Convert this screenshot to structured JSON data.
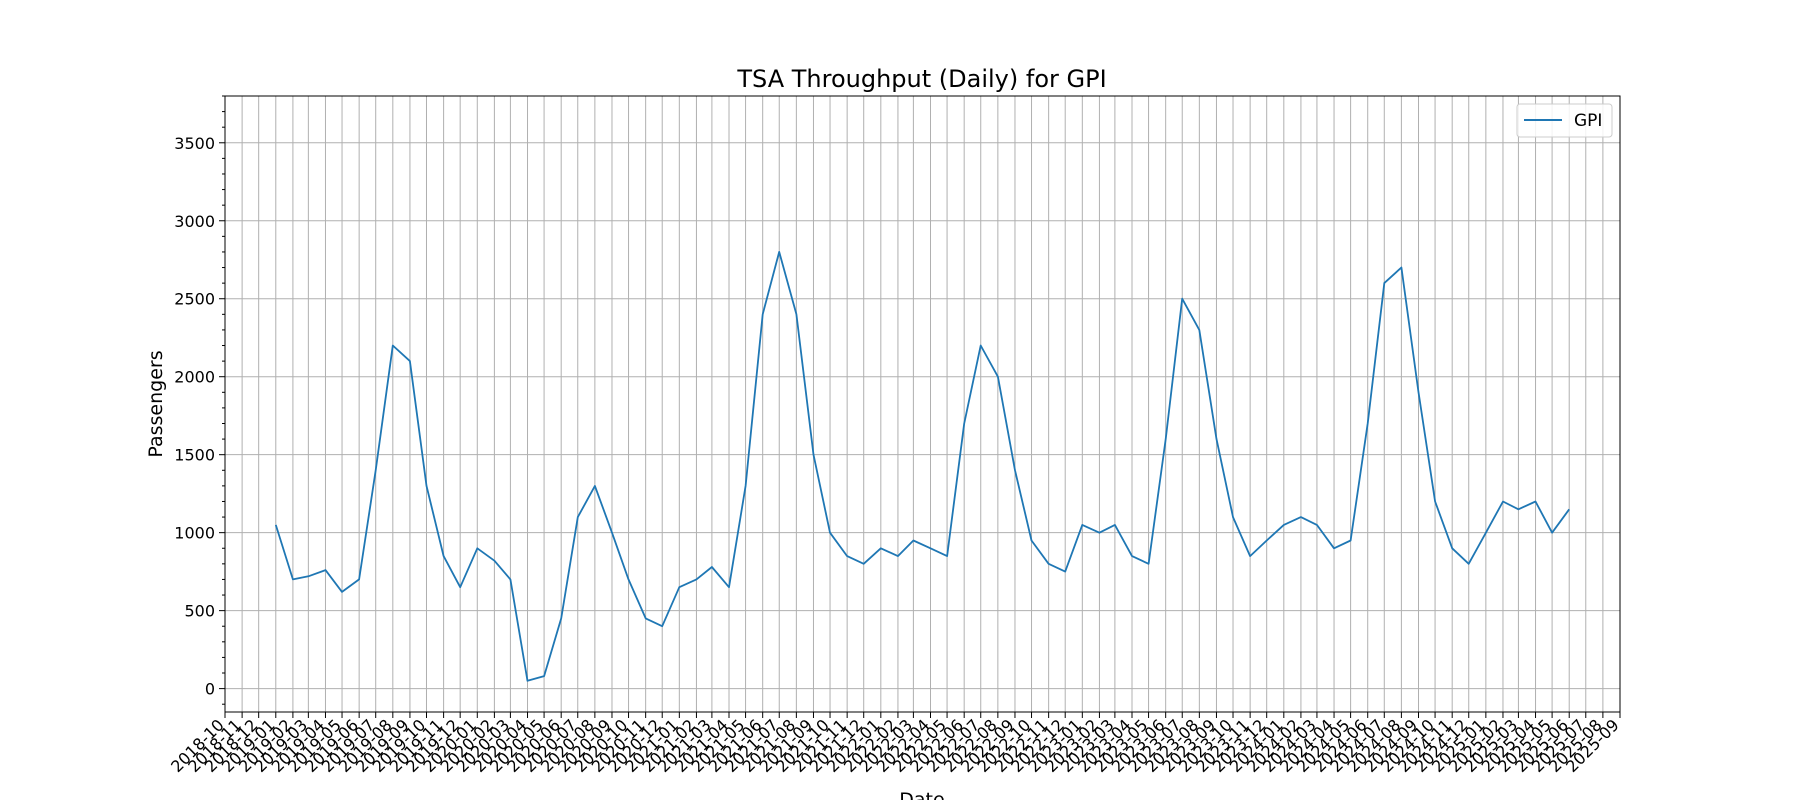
{
  "chart_data": {
    "type": "line",
    "title": "TSA Throughput (Daily) for GPI",
    "xlabel": "Date",
    "ylabel": "Passengers",
    "xlim": [
      "2018-10-01",
      "2025-09-01"
    ],
    "ylim": [
      -150,
      3800
    ],
    "yticks": [
      0,
      500,
      1000,
      1500,
      2000,
      2500,
      3000,
      3500
    ],
    "xticks": [
      "2018-10",
      "2018-11",
      "2018-12",
      "2019-01",
      "2019-02",
      "2019-03",
      "2019-04",
      "2019-05",
      "2019-06",
      "2019-07",
      "2019-08",
      "2019-09",
      "2019-10",
      "2019-11",
      "2019-12",
      "2020-01",
      "2020-02",
      "2020-03",
      "2020-04",
      "2020-05",
      "2020-06",
      "2020-07",
      "2020-08",
      "2020-09",
      "2020-10",
      "2020-11",
      "2020-12",
      "2021-01",
      "2021-02",
      "2021-03",
      "2021-04",
      "2021-05",
      "2021-06",
      "2021-07",
      "2021-08",
      "2021-09",
      "2021-10",
      "2021-11",
      "2021-12",
      "2022-01",
      "2022-02",
      "2022-03",
      "2022-04",
      "2022-05",
      "2022-06",
      "2022-07",
      "2022-08",
      "2022-09",
      "2022-10",
      "2022-11",
      "2022-12",
      "2023-01",
      "2023-02",
      "2023-03",
      "2023-04",
      "2023-05",
      "2023-06",
      "2023-07",
      "2023-08",
      "2023-09",
      "2023-10",
      "2023-11",
      "2023-12",
      "2024-01",
      "2024-02",
      "2024-03",
      "2024-04",
      "2024-05",
      "2024-06",
      "2024-07",
      "2024-08",
      "2024-09",
      "2024-10",
      "2024-11",
      "2024-12",
      "2025-01",
      "2025-02",
      "2025-03",
      "2025-04",
      "2025-05",
      "2025-06",
      "2025-07",
      "2025-08",
      "2025-09"
    ],
    "grid": true,
    "legend_position": "top-right",
    "series": [
      {
        "name": "GPI",
        "color": "#1f77b4",
        "x": [
          "2019-01-01",
          "2019-02-01",
          "2019-03-01",
          "2019-04-01",
          "2019-05-01",
          "2019-06-01",
          "2019-07-01",
          "2019-08-01",
          "2019-09-01",
          "2019-10-01",
          "2019-11-01",
          "2019-12-01",
          "2020-01-01",
          "2020-02-01",
          "2020-03-01",
          "2020-04-01",
          "2020-05-01",
          "2020-06-01",
          "2020-07-01",
          "2020-08-01",
          "2020-09-01",
          "2020-10-01",
          "2020-11-01",
          "2020-12-01",
          "2021-01-01",
          "2021-02-01",
          "2021-03-01",
          "2021-04-01",
          "2021-05-01",
          "2021-06-01",
          "2021-07-01",
          "2021-08-01",
          "2021-09-01",
          "2021-10-01",
          "2021-11-01",
          "2021-12-01",
          "2022-01-01",
          "2022-02-01",
          "2022-03-01",
          "2022-04-01",
          "2022-05-01",
          "2022-06-01",
          "2022-07-01",
          "2022-08-01",
          "2022-09-01",
          "2022-10-01",
          "2022-11-01",
          "2022-12-01",
          "2023-01-01",
          "2023-02-01",
          "2023-03-01",
          "2023-04-01",
          "2023-05-01",
          "2023-06-01",
          "2023-07-01",
          "2023-08-01",
          "2023-09-01",
          "2023-10-01",
          "2023-11-01",
          "2023-12-01",
          "2024-01-01",
          "2024-02-01",
          "2024-03-01",
          "2024-04-01",
          "2024-05-01",
          "2024-06-01",
          "2024-07-01",
          "2024-08-01",
          "2024-09-01",
          "2024-10-01",
          "2024-11-01",
          "2024-12-01",
          "2025-01-01",
          "2025-02-01",
          "2025-03-01",
          "2025-04-01",
          "2025-05-01",
          "2025-06-01"
        ],
        "y": [
          1050,
          700,
          720,
          760,
          620,
          700,
          1400,
          2200,
          2100,
          1300,
          850,
          650,
          900,
          820,
          700,
          50,
          80,
          450,
          1100,
          1300,
          1000,
          700,
          450,
          400,
          650,
          700,
          780,
          650,
          1300,
          2400,
          2800,
          2400,
          1500,
          1000,
          850,
          800,
          900,
          850,
          950,
          900,
          850,
          1700,
          2200,
          2000,
          1400,
          950,
          800,
          750,
          1050,
          1000,
          1050,
          850,
          800,
          1600,
          2500,
          2300,
          1600,
          1100,
          850,
          950,
          1050,
          1100,
          1050,
          900,
          950,
          1700,
          2600,
          2700,
          1900,
          1200,
          900,
          800,
          1000,
          1200,
          1150,
          1200,
          1000,
          1150
        ]
      }
    ]
  }
}
